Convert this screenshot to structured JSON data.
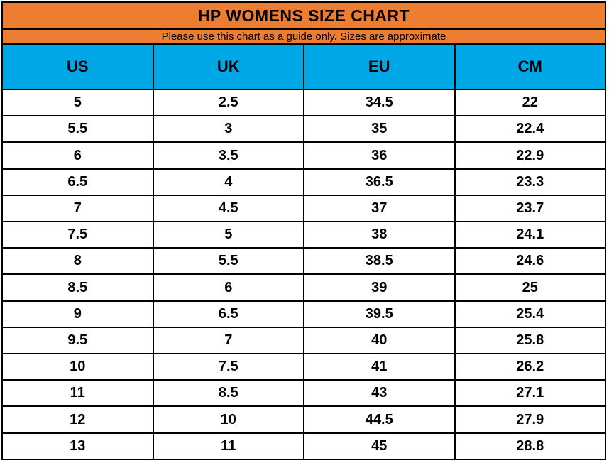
{
  "size_chart": {
    "title": "HP WOMENS SIZE CHART",
    "subtitle": "Please use this chart as a guide only. Sizes are approximate",
    "colors": {
      "title_bg": "#ED7D31",
      "subtitle_bg": "#ED7D31",
      "header_bg": "#00A7E7",
      "border": "#000000",
      "cell_bg": "#FFFFFF",
      "text": "#000000"
    }
  },
  "chart_data": {
    "type": "table",
    "title": "HP WOMENS SIZE CHART",
    "subtitle": "Please use this chart as a guide only. Sizes are approximate",
    "columns": [
      "US",
      "UK",
      "EU",
      "CM"
    ],
    "rows": [
      [
        5,
        2.5,
        34.5,
        22
      ],
      [
        5.5,
        3,
        35,
        22.4
      ],
      [
        6,
        3.5,
        36,
        22.9
      ],
      [
        6.5,
        4,
        36.5,
        23.3
      ],
      [
        7,
        4.5,
        37,
        23.7
      ],
      [
        7.5,
        5,
        38,
        24.1
      ],
      [
        8,
        5.5,
        38.5,
        24.6
      ],
      [
        8.5,
        6,
        39,
        25
      ],
      [
        9,
        6.5,
        39.5,
        25.4
      ],
      [
        9.5,
        7,
        40,
        25.8
      ],
      [
        10,
        7.5,
        41,
        26.2
      ],
      [
        11,
        8.5,
        43,
        27.1
      ],
      [
        12,
        10,
        44.5,
        27.9
      ],
      [
        13,
        11,
        45,
        28.8
      ]
    ]
  }
}
